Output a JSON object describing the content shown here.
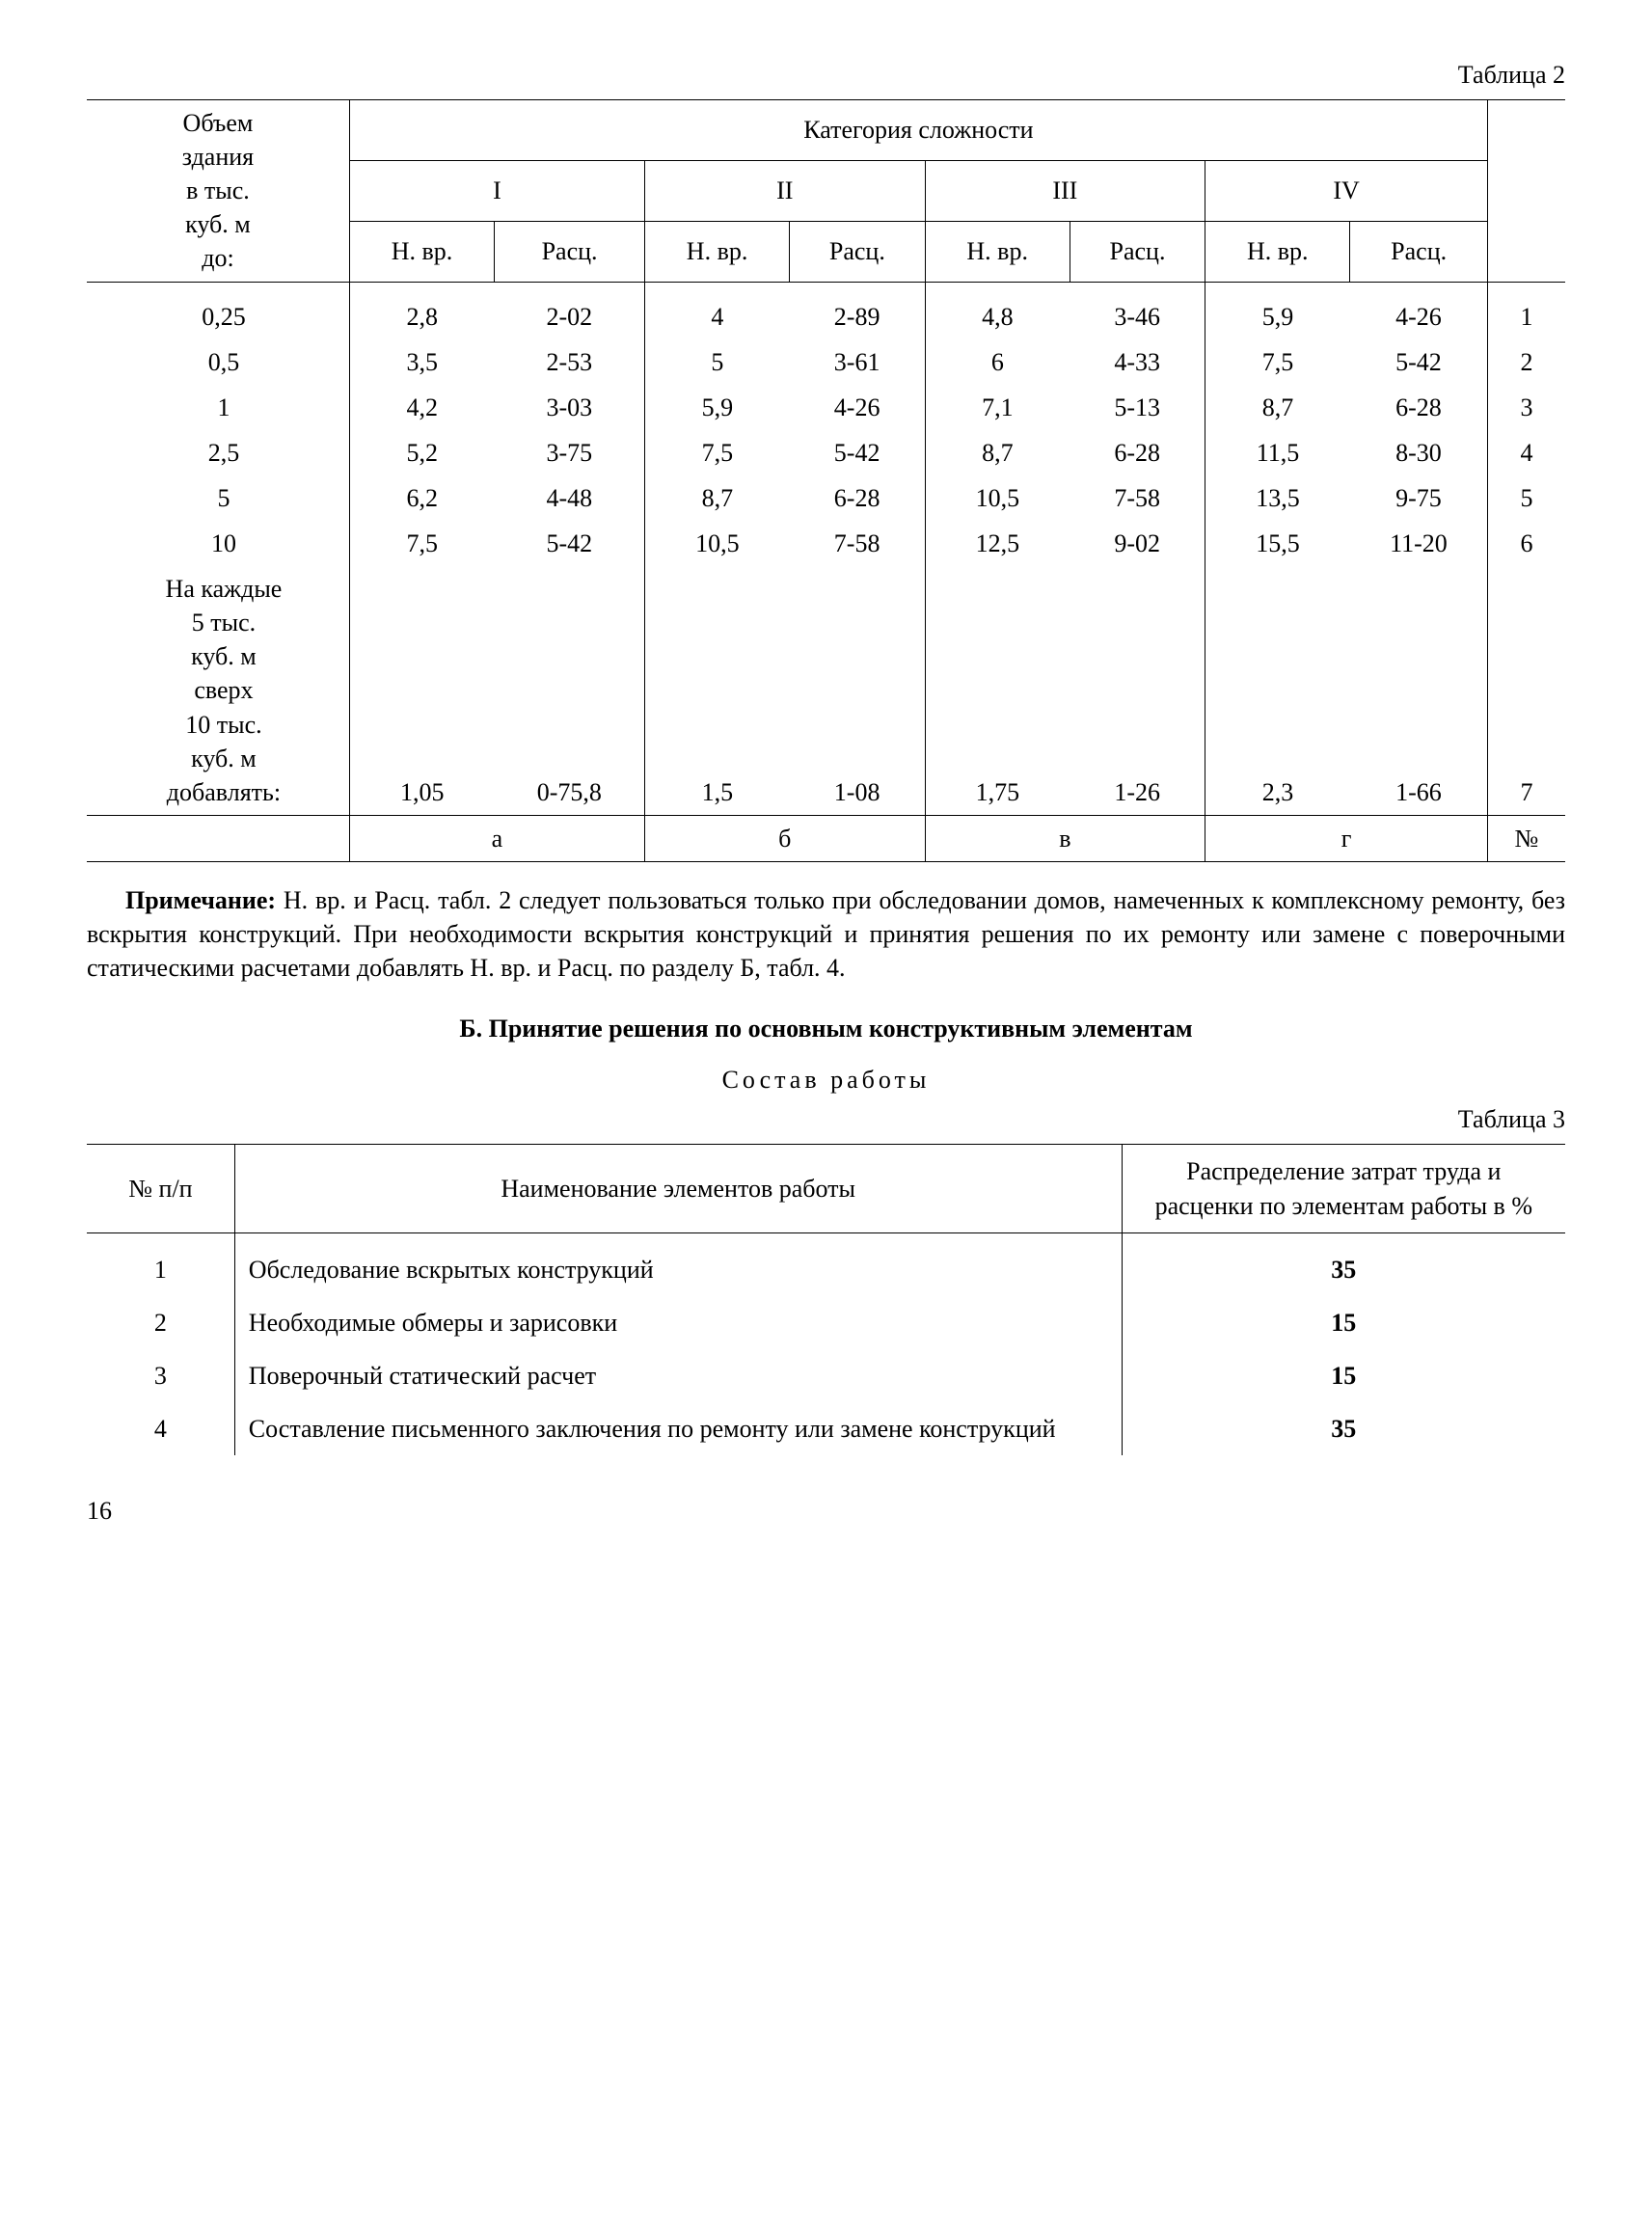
{
  "table2": {
    "caption": "Таблица 2",
    "col_volume_lines": [
      "Объем",
      "здания",
      "в тыс.",
      "куб. м",
      "до:"
    ],
    "category_header": "Категория сложности",
    "cats": [
      "I",
      "II",
      "III",
      "IV"
    ],
    "sub_hvr": "Н. вр.",
    "sub_rasc": "Расц.",
    "rows": [
      {
        "vol": "0,25",
        "c": [
          "2,8",
          "2-02",
          "4",
          "2-89",
          "4,8",
          "3-46",
          "5,9",
          "4-26"
        ],
        "n": "1"
      },
      {
        "vol": "0,5",
        "c": [
          "3,5",
          "2-53",
          "5",
          "3-61",
          "6",
          "4-33",
          "7,5",
          "5-42"
        ],
        "n": "2"
      },
      {
        "vol": "1",
        "c": [
          "4,2",
          "3-03",
          "5,9",
          "4-26",
          "7,1",
          "5-13",
          "8,7",
          "6-28"
        ],
        "n": "3"
      },
      {
        "vol": "2,5",
        "c": [
          "5,2",
          "3-75",
          "7,5",
          "5-42",
          "8,7",
          "6-28",
          "11,5",
          "8-30"
        ],
        "n": "4"
      },
      {
        "vol": "5",
        "c": [
          "6,2",
          "4-48",
          "8,7",
          "6-28",
          "10,5",
          "7-58",
          "13,5",
          "9-75"
        ],
        "n": "5"
      },
      {
        "vol": "10",
        "c": [
          "7,5",
          "5-42",
          "10,5",
          "7-58",
          "12,5",
          "9-02",
          "15,5",
          "11-20"
        ],
        "n": "6"
      }
    ],
    "extra_row_label_lines": [
      "На каждые",
      "5 тыс.",
      "куб. м",
      "сверх",
      "10 тыс.",
      "куб. м",
      "добавлять:"
    ],
    "extra_row": {
      "c": [
        "1,05",
        "0-75,8",
        "1,5",
        "1-08",
        "1,75",
        "1-26",
        "2,3",
        "1-66"
      ],
      "n": "7"
    },
    "footer_labels": [
      "а",
      "б",
      "в",
      "г",
      "№"
    ]
  },
  "note_label": "Примечание:",
  "note_text": " Н. вр. и Расц. табл. 2 следует пользоваться только при обследовании домов, намеченных к комплексному ремонту, без вскрытия конструкций. При необходимости вскрытия конструкций и принятия решения по их ремонту или замене с поверочными статическими расчетами добавлять Н. вр. и Расц. по разделу Б, табл. 4.",
  "section_b": "Б. Принятие решения по основным конструктивным элементам",
  "sostav": "Состав работы",
  "table3": {
    "caption": "Таблица 3",
    "headers": [
      "№ п/п",
      "Наименование элементов работы",
      "Распределение затрат труда и расценки по элементам работы в %"
    ],
    "rows": [
      {
        "n": "1",
        "name": "Обследование вскрытых конструкций",
        "pct": "35"
      },
      {
        "n": "2",
        "name": "Необходимые обмеры и зарисовки",
        "pct": "15"
      },
      {
        "n": "3",
        "name": "Поверочный статический расчет",
        "pct": "15"
      },
      {
        "n": "4",
        "name": "Составление письменного заключения по ремонту или замене конструкций",
        "pct": "35"
      }
    ]
  },
  "page_number": "16"
}
